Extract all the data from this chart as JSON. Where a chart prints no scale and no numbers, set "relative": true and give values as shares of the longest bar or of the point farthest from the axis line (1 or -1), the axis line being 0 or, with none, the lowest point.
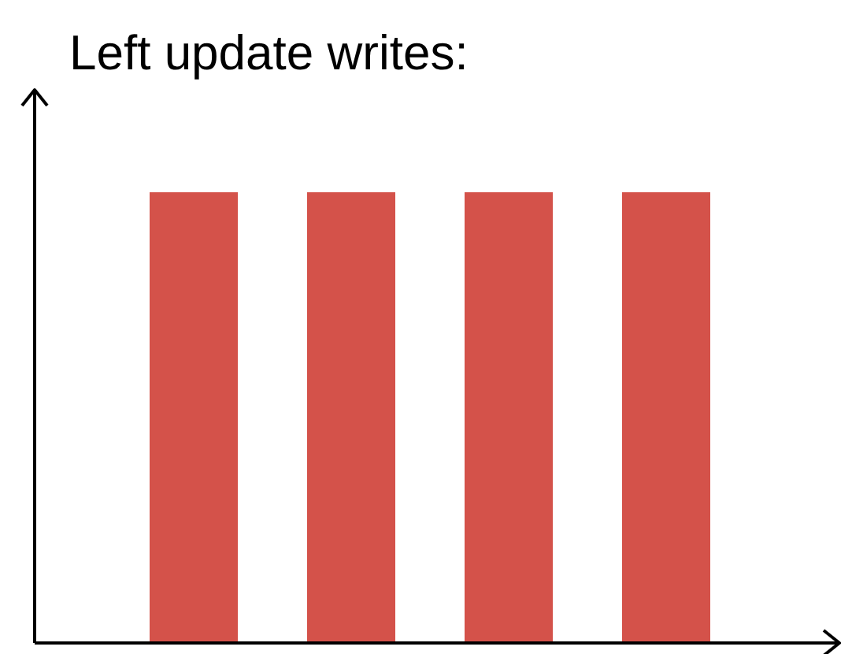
{
  "chart_data": {
    "type": "bar",
    "title": "Left update writes:",
    "relative": true,
    "categories": [
      null,
      null,
      null,
      null
    ],
    "values": [
      1,
      1,
      1,
      1
    ],
    "color": "#d4524a"
  }
}
